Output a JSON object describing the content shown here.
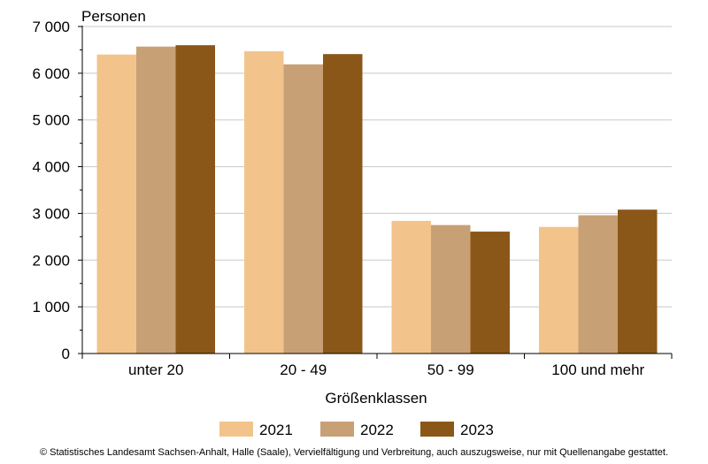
{
  "chart_data": {
    "type": "bar",
    "ylabel": "Personen",
    "xlabel": "Größenklassen",
    "categories": [
      "unter 20",
      "20 - 49",
      "50 - 99",
      "100 und mehr"
    ],
    "series": [
      {
        "name": "2021",
        "color": "#f2c48c",
        "values": [
          6400,
          6470,
          2840,
          2710
        ]
      },
      {
        "name": "2022",
        "color": "#c8a075",
        "values": [
          6570,
          6190,
          2750,
          2960
        ]
      },
      {
        "name": "2023",
        "color": "#8b5718",
        "values": [
          6600,
          6410,
          2610,
          3080
        ]
      }
    ],
    "ylim": [
      0,
      7000
    ],
    "yticks": [
      0,
      1000,
      2000,
      3000,
      4000,
      5000,
      6000,
      7000
    ],
    "ytick_labels": [
      "0",
      "1 000",
      "2 000",
      "3 000",
      "4 000",
      "5 000",
      "6 000",
      "7 000"
    ],
    "grid": true,
    "legend_position": "bottom"
  },
  "footer": "© Statistisches Landesamt Sachsen-Anhalt, Halle (Saale), Vervielfältigung und Verbreitung, auch auszugsweise, nur mit Quellenangabe gestattet."
}
